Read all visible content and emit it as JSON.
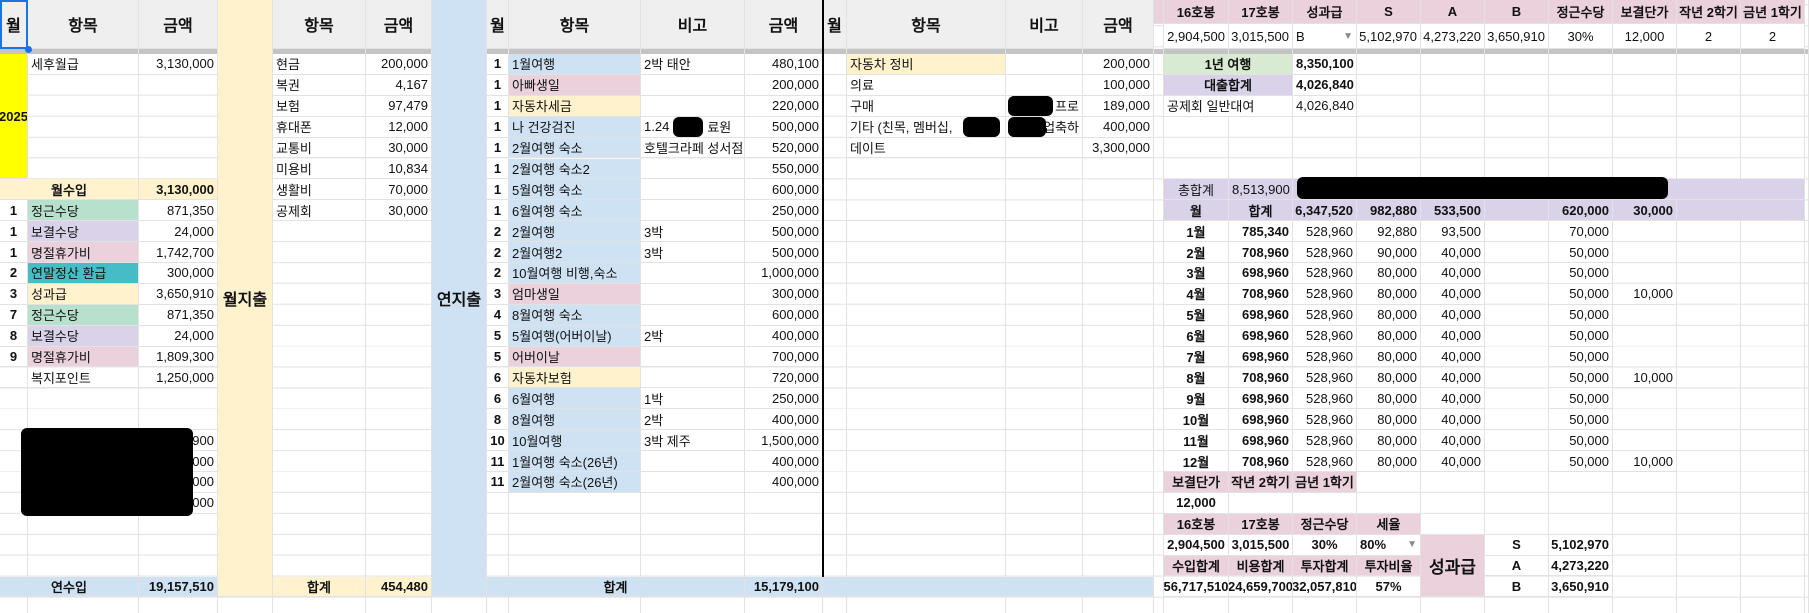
{
  "palette": {
    "header_gray": "#efefef",
    "yellow": "#ffff00",
    "cream": "#fff2cc",
    "blue": "#cfe2f3",
    "green": "#b7e1cd",
    "light_green": "#d9ead3",
    "purple": "#d9d2e9",
    "pink": "#ead1dc",
    "teal": "#46bdc6",
    "selection": "#1a73e8"
  },
  "income": {
    "header": {
      "month": "월",
      "item": "항목",
      "amount": "금액"
    },
    "year": "2025",
    "salary_label": "세후월급",
    "salary": "3,130,000",
    "monthly_label": "월수입",
    "monthly_total": "3,130,000",
    "items": [
      {
        "month": "1",
        "label": "정근수당",
        "amount": "871,350",
        "color": "green"
      },
      {
        "month": "1",
        "label": "보결수당",
        "amount": "24,000",
        "color": "purple"
      },
      {
        "month": "1",
        "label": "명절휴가비",
        "amount": "1,742,700",
        "color": "pink"
      },
      {
        "month": "2",
        "label": "연말정산 환급",
        "amount": "300,000",
        "color": "teal"
      },
      {
        "month": "3",
        "label": "성과급",
        "amount": "3,650,910",
        "color": "cream"
      },
      {
        "month": "7",
        "label": "정근수당",
        "amount": "871,350",
        "color": "green"
      },
      {
        "month": "8",
        "label": "보결수당",
        "amount": "24,000",
        "color": "purple"
      },
      {
        "month": "9",
        "label": "명절휴가비",
        "amount": "1,809,300",
        "color": "pink"
      },
      {
        "month": "",
        "label": "복지포인트",
        "amount": "1,250,000",
        "color": ""
      }
    ],
    "redacted_amounts": [
      "900",
      "000",
      "000",
      "000"
    ],
    "annual_label": "연수입",
    "annual_total": "19,157,510"
  },
  "monthly_expense": {
    "title": "월지출",
    "header": {
      "item": "항목",
      "amount": "금액"
    },
    "items": [
      {
        "label": "현금",
        "amount": "200,000"
      },
      {
        "label": "복권",
        "amount": "4,167"
      },
      {
        "label": "보험",
        "amount": "97,479"
      },
      {
        "label": "휴대폰",
        "amount": "12,000"
      },
      {
        "label": "교통비",
        "amount": "30,000"
      },
      {
        "label": "미용비",
        "amount": "10,834"
      },
      {
        "label": "생활비",
        "amount": "70,000"
      },
      {
        "label": "공제회",
        "amount": "30,000"
      }
    ],
    "total_label": "합계",
    "total": "454,480"
  },
  "annual_expense": {
    "title": "연지출",
    "header": {
      "month": "월",
      "item": "항목",
      "note": "비고",
      "amount": "금액"
    },
    "items": [
      {
        "month": "1",
        "label": "1월여행",
        "note": "2박 태안",
        "amount": "480,100",
        "color": "blue"
      },
      {
        "month": "1",
        "label": "아빠생일",
        "note": "",
        "amount": "200,000",
        "color": "pink"
      },
      {
        "month": "1",
        "label": "자동차세금",
        "note": "",
        "amount": "220,000",
        "color": "cream"
      },
      {
        "month": "1",
        "label": "나 건강검진",
        "note": "1.24",
        "note_suffix": "료원",
        "amount": "500,000",
        "color": "blue"
      },
      {
        "month": "1",
        "label": "2월여행 숙소",
        "note": "호텔크라페 성서점",
        "amount": "520,000",
        "color": "blue"
      },
      {
        "month": "1",
        "label": "2월여행 숙소2",
        "note": "",
        "amount": "550,000",
        "color": "blue"
      },
      {
        "month": "1",
        "label": "5월여행 숙소",
        "note": "",
        "amount": "600,000",
        "color": "blue"
      },
      {
        "month": "1",
        "label": "6월여행 숙소",
        "note": "",
        "amount": "250,000",
        "color": "blue"
      },
      {
        "month": "2",
        "label": "2월여행",
        "note": "3박",
        "amount": "500,000",
        "color": "blue"
      },
      {
        "month": "2",
        "label": "2월여행2",
        "note": "3박",
        "amount": "500,000",
        "color": "blue"
      },
      {
        "month": "2",
        "label": "10월여행 비행,숙소",
        "note": "",
        "amount": "1,000,000",
        "color": "blue"
      },
      {
        "month": "3",
        "label": "엄마생일",
        "note": "",
        "amount": "300,000",
        "color": "pink"
      },
      {
        "month": "4",
        "label": "8월여행 숙소",
        "note": "",
        "amount": "600,000",
        "color": "blue"
      },
      {
        "month": "5",
        "label": "5월여행(어버이날)",
        "note": "2박",
        "amount": "400,000",
        "color": "blue"
      },
      {
        "month": "5",
        "label": "어버이날",
        "note": "",
        "amount": "700,000",
        "color": "pink"
      },
      {
        "month": "6",
        "label": "자동차보험",
        "note": "",
        "amount": "720,000",
        "color": "cream"
      },
      {
        "month": "6",
        "label": "6월여행",
        "note": "1박",
        "amount": "250,000",
        "color": "blue"
      },
      {
        "month": "8",
        "label": "8월여행",
        "note": "2박",
        "amount": "400,000",
        "color": "blue"
      },
      {
        "month": "10",
        "label": "10월여행",
        "note": "3박 제주",
        "amount": "1,500,000",
        "color": "blue"
      },
      {
        "month": "11",
        "label": "1월여행 숙소(26년)",
        "note": "",
        "amount": "400,000",
        "color": "blue"
      },
      {
        "month": "11",
        "label": "2월여행 숙소(26년)",
        "note": "",
        "amount": "400,000",
        "color": "blue"
      }
    ],
    "total_label": "합계",
    "total": "15,179,100"
  },
  "misc_expense": {
    "header": {
      "month": "월",
      "item": "항목",
      "note": "비고",
      "amount": "금액"
    },
    "items": [
      {
        "label": "자동차 정비",
        "note": "",
        "amount": "200,000",
        "color": "cream"
      },
      {
        "label": "의료",
        "note": "",
        "amount": "100,000",
        "color": ""
      },
      {
        "label": "구매",
        "note": "프로",
        "amount": "189,000",
        "color": ""
      },
      {
        "label": "기타 (친목, 멤버십,",
        "note": "업축하",
        "amount": "400,000",
        "color": ""
      },
      {
        "label": "데이트",
        "note": "",
        "amount": "3,300,000",
        "color": ""
      }
    ]
  },
  "settings": {
    "headers": [
      "16호봉",
      "17호봉",
      "성과급",
      "S",
      "A",
      "B",
      "정근수당",
      "보결단가",
      "작년 2학기",
      "금년 1학기"
    ],
    "values": [
      "2,904,500",
      "3,015,500",
      "B",
      "5,102,970",
      "4,273,220",
      "3,650,910",
      "30%",
      "12,000",
      "2",
      "2"
    ]
  },
  "summary": {
    "trip_label": "1년 여행",
    "trip_total": "8,350,100",
    "loan_label": "대출합계",
    "loan_total": "4,026,840",
    "loan_item_label": "공제회 일반대여",
    "loan_item": "4,026,840"
  },
  "monthly_table": {
    "grand_label": "총합계",
    "grand_total": "8,513,900",
    "header": [
      "월",
      "합계",
      "6,347,520",
      "982,880",
      "533,500",
      "",
      "620,000",
      "30,000"
    ],
    "rows": [
      [
        "1월",
        "785,340",
        "528,960",
        "92,880",
        "93,500",
        "",
        "70,000",
        ""
      ],
      [
        "2월",
        "708,960",
        "528,960",
        "90,000",
        "40,000",
        "",
        "50,000",
        ""
      ],
      [
        "3월",
        "698,960",
        "528,960",
        "80,000",
        "40,000",
        "",
        "50,000",
        ""
      ],
      [
        "4월",
        "708,960",
        "528,960",
        "80,000",
        "40,000",
        "",
        "50,000",
        "10,000"
      ],
      [
        "5월",
        "698,960",
        "528,960",
        "80,000",
        "40,000",
        "",
        "50,000",
        ""
      ],
      [
        "6월",
        "698,960",
        "528,960",
        "80,000",
        "40,000",
        "",
        "50,000",
        ""
      ],
      [
        "7월",
        "698,960",
        "528,960",
        "80,000",
        "40,000",
        "",
        "50,000",
        ""
      ],
      [
        "8월",
        "708,960",
        "528,960",
        "80,000",
        "40,000",
        "",
        "50,000",
        "10,000"
      ],
      [
        "9월",
        "698,960",
        "528,960",
        "80,000",
        "40,000",
        "",
        "50,000",
        ""
      ],
      [
        "10월",
        "698,960",
        "528,960",
        "80,000",
        "40,000",
        "",
        "50,000",
        ""
      ],
      [
        "11월",
        "698,960",
        "528,960",
        "80,000",
        "40,000",
        "",
        "50,000",
        ""
      ],
      [
        "12월",
        "708,960",
        "528,960",
        "80,000",
        "40,000",
        "",
        "50,000",
        "10,000"
      ]
    ]
  },
  "params": {
    "sub_headers": [
      "보결단가",
      "작년 2학기",
      "금년 1학기"
    ],
    "sub_values": [
      "12,000"
    ],
    "pay_headers": [
      "16호봉",
      "17호봉",
      "정근수당",
      "세율"
    ],
    "pay_values": [
      "2,904,500",
      "3,015,500",
      "30%",
      "80%"
    ],
    "total_headers": [
      "수입합계",
      "비용합계",
      "투자합계",
      "투자비율"
    ],
    "total_values": [
      "56,717,510",
      "24,659,700",
      "32,057,810",
      "57%"
    ],
    "bonus_label": "성과급",
    "bonus_grades": [
      {
        "grade": "S",
        "amount": "5,102,970"
      },
      {
        "grade": "A",
        "amount": "4,273,220"
      },
      {
        "grade": "B",
        "amount": "3,650,910"
      }
    ]
  }
}
